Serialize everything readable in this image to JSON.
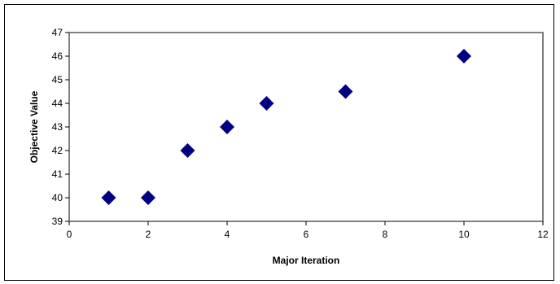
{
  "chart_data": {
    "type": "scatter",
    "title": "",
    "xlabel": "Major Iteration",
    "ylabel": "Objective Value",
    "xlim": [
      0,
      12
    ],
    "ylim": [
      39,
      47
    ],
    "x_ticks": [
      0,
      2,
      4,
      6,
      8,
      10,
      12
    ],
    "y_ticks": [
      39,
      40,
      41,
      42,
      43,
      44,
      45,
      46,
      47
    ],
    "grid": false,
    "legend": "none",
    "marker": "diamond",
    "marker_color": "#000080",
    "plot_border_color": "#808080",
    "x": [
      1,
      2,
      3,
      4,
      5,
      7,
      10
    ],
    "y": [
      40,
      40,
      42,
      43,
      44,
      44.5,
      46
    ]
  }
}
